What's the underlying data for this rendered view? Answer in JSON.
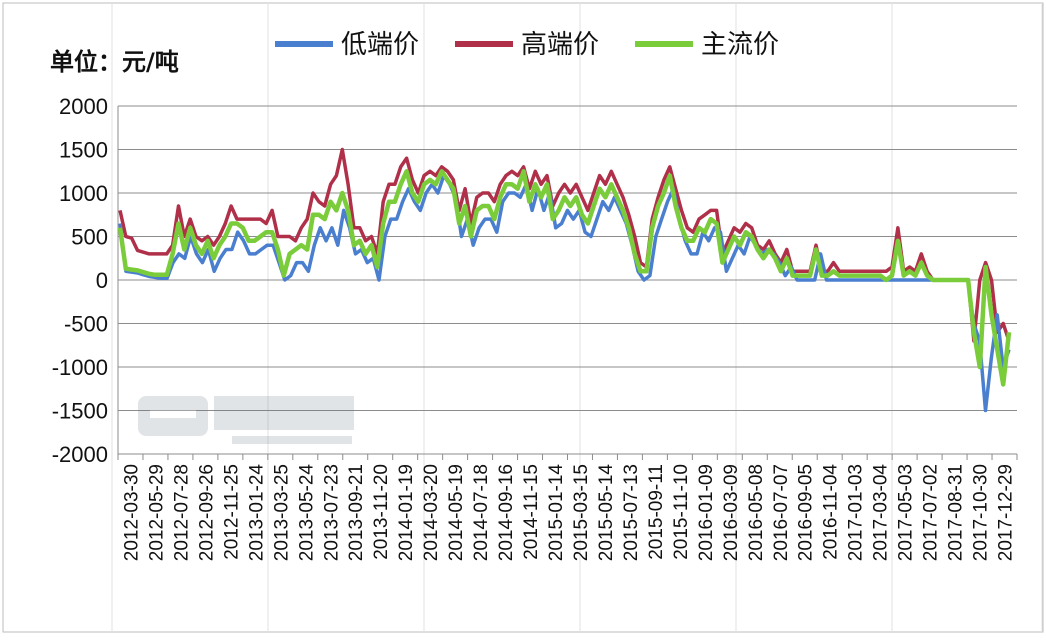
{
  "chart_data": {
    "type": "line",
    "unit_label": "单位：元/吨",
    "ylim": [
      -2000,
      2000
    ],
    "y_ticks": [
      2000,
      1500,
      1000,
      500,
      0,
      -500,
      -1000,
      -1500,
      -2000
    ],
    "x_tick_labels": [
      "2012-03-30",
      "2012-05-29",
      "2012-07-28",
      "2012-09-26",
      "2012-11-25",
      "2013-01-24",
      "2013-03-25",
      "2013-05-24",
      "2013-07-23",
      "2013-09-21",
      "2013-11-20",
      "2014-01-19",
      "2014-03-20",
      "2014-05-19",
      "2014-07-18",
      "2014-09-16",
      "2014-11-15",
      "2015-01-14",
      "2015-03-15",
      "2015-05-14",
      "2015-07-13",
      "2015-09-11",
      "2015-11-10",
      "2016-01-09",
      "2016-03-09",
      "2016-05-08",
      "2016-07-07",
      "2016-09-05",
      "2016-11-04",
      "2017-01-03",
      "2017-03-04",
      "2017-05-03",
      "2017-07-02",
      "2017-08-31",
      "2017-10-30",
      "2017-12-29"
    ],
    "grid": true,
    "legend_position": "top",
    "series": [
      {
        "name": "低端价",
        "color": "#4a7fd0",
        "values": [
          650,
          100,
          90,
          80,
          60,
          40,
          30,
          20,
          20,
          200,
          300,
          250,
          500,
          300,
          200,
          350,
          100,
          250,
          350,
          350,
          550,
          450,
          300,
          300,
          350,
          400,
          400,
          200,
          0,
          50,
          200,
          200,
          100,
          400,
          600,
          450,
          600,
          400,
          800,
          600,
          300,
          350,
          200,
          250,
          0,
          500,
          700,
          700,
          900,
          1050,
          900,
          800,
          1000,
          1100,
          1000,
          1200,
          1100,
          950,
          500,
          700,
          400,
          600,
          700,
          700,
          550,
          900,
          1000,
          1000,
          950,
          1100,
          800,
          1050,
          800,
          1000,
          600,
          650,
          800,
          700,
          800,
          550,
          500,
          700,
          900,
          800,
          950,
          800,
          650,
          400,
          100,
          0,
          50,
          500,
          700,
          900,
          1050,
          700,
          450,
          300,
          300,
          550,
          450,
          600,
          550,
          100,
          250,
          400,
          300,
          500,
          400,
          300,
          350,
          300,
          200,
          50,
          150,
          0,
          0,
          0,
          0,
          300,
          0,
          0,
          0,
          0,
          0,
          0,
          0,
          0,
          0,
          0,
          0,
          0,
          0,
          0,
          0,
          0,
          0,
          0,
          0,
          0,
          0,
          0,
          0,
          0,
          0,
          -500,
          -700,
          -1500,
          -900,
          -400,
          -1000,
          -800
        ]
      },
      {
        "name": "高端价",
        "color": "#b0304a",
        "values": [
          800,
          500,
          480,
          340,
          320,
          300,
          300,
          300,
          300,
          400,
          850,
          500,
          700,
          500,
          450,
          500,
          400,
          500,
          650,
          850,
          700,
          700,
          700,
          700,
          700,
          650,
          800,
          500,
          500,
          500,
          450,
          600,
          700,
          1000,
          900,
          850,
          1100,
          1200,
          1500,
          1100,
          600,
          600,
          450,
          500,
          300,
          900,
          1100,
          1100,
          1300,
          1400,
          1150,
          1000,
          1200,
          1250,
          1200,
          1300,
          1250,
          1150,
          800,
          1050,
          650,
          950,
          1000,
          1000,
          900,
          1100,
          1200,
          1250,
          1200,
          1300,
          1050,
          1250,
          1100,
          1200,
          850,
          1000,
          1100,
          1000,
          1100,
          950,
          800,
          1000,
          1200,
          1100,
          1250,
          1100,
          950,
          750,
          500,
          200,
          150,
          700,
          950,
          1150,
          1300,
          1050,
          800,
          600,
          550,
          700,
          750,
          800,
          800,
          300,
          450,
          600,
          550,
          650,
          600,
          400,
          350,
          450,
          300,
          200,
          350,
          100,
          100,
          100,
          100,
          400,
          100,
          100,
          200,
          100,
          100,
          100,
          100,
          100,
          100,
          100,
          100,
          100,
          150,
          600,
          100,
          150,
          100,
          300,
          100,
          0,
          0,
          0,
          0,
          0,
          0,
          0,
          -700,
          0,
          200,
          0,
          -600,
          -500,
          -700
        ]
      },
      {
        "name": "主流价",
        "color": "#7acc3a",
        "values": [
          600,
          130,
          120,
          110,
          90,
          70,
          60,
          60,
          60,
          300,
          650,
          350,
          600,
          400,
          300,
          450,
          250,
          400,
          500,
          650,
          650,
          600,
          450,
          450,
          500,
          550,
          550,
          350,
          50,
          300,
          350,
          400,
          350,
          750,
          750,
          700,
          900,
          800,
          1000,
          800,
          400,
          450,
          300,
          400,
          150,
          650,
          900,
          900,
          1100,
          1250,
          1000,
          900,
          1100,
          1150,
          1100,
          1250,
          1150,
          1050,
          650,
          850,
          500,
          800,
          850,
          850,
          700,
          950,
          1100,
          1100,
          1050,
          1250,
          900,
          1100,
          950,
          1100,
          700,
          800,
          950,
          850,
          950,
          750,
          650,
          850,
          1050,
          950,
          1100,
          950,
          800,
          600,
          300,
          100,
          100,
          600,
          850,
          1000,
          1200,
          850,
          600,
          450,
          450,
          600,
          550,
          700,
          650,
          200,
          350,
          500,
          400,
          550,
          500,
          350,
          250,
          350,
          250,
          100,
          250,
          50,
          50,
          50,
          50,
          350,
          50,
          50,
          100,
          50,
          50,
          50,
          50,
          50,
          50,
          50,
          50,
          0,
          50,
          450,
          50,
          100,
          50,
          200,
          50,
          0,
          0,
          0,
          0,
          0,
          0,
          0,
          -600,
          -1000,
          150,
          -400,
          -800,
          -1200,
          -600
        ]
      }
    ]
  }
}
